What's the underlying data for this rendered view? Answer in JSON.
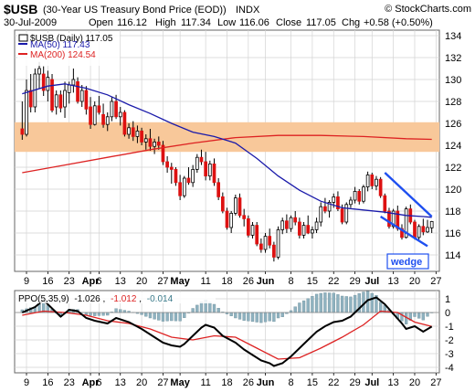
{
  "header": {
    "symbol": "$USB",
    "description": "(30-Year US Treasury Bond Price (EOD))",
    "exchange": "INDX",
    "watermark": "© StockCharts.com",
    "date": "30-Jul-2009",
    "open_label": "Open",
    "open": "116.12",
    "high_label": "High",
    "high": "117.34",
    "low_label": "Low",
    "low": "116.06",
    "close_label": "Close",
    "close": "117.05",
    "chg_label": "Chg",
    "chg": "+0.58 (+0.50%)"
  },
  "legend": {
    "price": "$USB (Daily) 117.05",
    "ma50": "MA(50) 117.43",
    "ma200": "MA(200) 124.54"
  },
  "ppo_legend": {
    "label": "PPO(5,35,9)",
    "ppo": "-1.026",
    "signal": "-1.012",
    "hist": "-0.014"
  },
  "annotation": {
    "wedge": "wedge"
  },
  "colors": {
    "up": "#ffffff",
    "down": "#dd1111",
    "ma50": "#1a1aaa",
    "ma200": "#dd2222",
    "band": "#f8c89a",
    "ppo": "#000000",
    "signal": "#dd2222",
    "hist": "#8fb2c0",
    "wedge_line": "#1e4ff0",
    "grid": "#d3d3d3"
  },
  "chart_data": [
    {
      "type": "candlestick",
      "title": "$USB (Daily)",
      "ylim": [
        112.5,
        134.5
      ],
      "y_ticks": [
        114,
        116,
        118,
        120,
        122,
        124,
        126,
        128,
        130,
        132,
        134
      ],
      "x_ticks": [
        {
          "i": 1,
          "label": "9"
        },
        {
          "i": 6,
          "label": "16"
        },
        {
          "i": 11,
          "label": "23"
        },
        {
          "i": 16,
          "label": "Apr"
        },
        {
          "i": 18,
          "label": "6"
        },
        {
          "i": 23,
          "label": "13"
        },
        {
          "i": 28,
          "label": "20"
        },
        {
          "i": 33,
          "label": "27"
        },
        {
          "i": 37,
          "label": "May"
        },
        {
          "i": 43,
          "label": "11"
        },
        {
          "i": 48,
          "label": "18"
        },
        {
          "i": 53,
          "label": "26"
        },
        {
          "i": 57,
          "label": "Jun"
        },
        {
          "i": 63,
          "label": "8"
        },
        {
          "i": 68,
          "label": "15"
        },
        {
          "i": 73,
          "label": "22"
        },
        {
          "i": 78,
          "label": "29"
        },
        {
          "i": 82,
          "label": "Jul"
        },
        {
          "i": 87,
          "label": "13"
        },
        {
          "i": 92,
          "label": "20"
        },
        {
          "i": 97,
          "label": "27"
        }
      ],
      "ohlc": [
        [
          125.5,
          128.0,
          124.5,
          125.0
        ],
        [
          125.0,
          130.0,
          124.8,
          129.0
        ],
        [
          129.0,
          130.5,
          127.0,
          127.5
        ],
        [
          127.5,
          131.0,
          127.0,
          130.5
        ],
        [
          130.5,
          131.6,
          129.2,
          131.0
        ],
        [
          130.5,
          131.2,
          128.5,
          129.0
        ],
        [
          129.0,
          130.8,
          128.0,
          130.2
        ],
        [
          130.0,
          130.5,
          127.0,
          127.2
        ],
        [
          127.5,
          129.0,
          126.8,
          128.6
        ],
        [
          128.6,
          129.0,
          127.0,
          127.4
        ],
        [
          127.5,
          129.8,
          126.5,
          129.0
        ],
        [
          128.8,
          129.8,
          127.8,
          129.5
        ],
        [
          129.5,
          131.0,
          128.8,
          130.0
        ],
        [
          129.8,
          130.2,
          127.8,
          128.0
        ],
        [
          128.0,
          129.5,
          127.5,
          129.0
        ],
        [
          129.0,
          129.4,
          126.8,
          127.3
        ],
        [
          127.5,
          128.4,
          125.5,
          125.9
        ],
        [
          125.9,
          128.0,
          125.8,
          127.6
        ],
        [
          127.6,
          128.5,
          126.8,
          127.0
        ],
        [
          126.8,
          127.8,
          125.6,
          125.9
        ],
        [
          125.9,
          127.0,
          125.3,
          126.6
        ],
        [
          126.6,
          128.4,
          126.2,
          128.0
        ],
        [
          128.0,
          128.6,
          126.4,
          126.6
        ],
        [
          126.6,
          127.5,
          125.8,
          127.0
        ],
        [
          127.0,
          127.2,
          124.8,
          125.0
        ],
        [
          125.0,
          126.0,
          124.6,
          125.6
        ],
        [
          125.6,
          126.2,
          124.4,
          124.8
        ],
        [
          124.8,
          125.8,
          124.2,
          125.3
        ],
        [
          125.3,
          125.6,
          124.0,
          124.3
        ],
        [
          124.3,
          125.0,
          123.6,
          124.6
        ],
        [
          124.6,
          125.5,
          123.5,
          123.9
        ],
        [
          123.9,
          124.6,
          123.2,
          124.3
        ],
        [
          124.3,
          124.8,
          123.6,
          124.0
        ],
        [
          124.0,
          124.4,
          122.2,
          122.5
        ],
        [
          122.5,
          123.0,
          121.5,
          122.0
        ],
        [
          122.0,
          122.4,
          120.5,
          121.8
        ],
        [
          121.8,
          122.0,
          120.3,
          120.6
        ],
        [
          120.6,
          121.3,
          119.0,
          119.4
        ],
        [
          119.4,
          121.2,
          119.2,
          121.0
        ],
        [
          121.0,
          122.0,
          120.4,
          120.6
        ],
        [
          120.6,
          122.2,
          120.2,
          121.8
        ],
        [
          121.8,
          123.2,
          121.5,
          122.9
        ],
        [
          122.9,
          123.6,
          122.2,
          122.5
        ],
        [
          122.5,
          123.4,
          120.8,
          121.2
        ],
        [
          121.2,
          122.6,
          120.8,
          122.3
        ],
        [
          122.3,
          122.8,
          120.3,
          120.6
        ],
        [
          120.6,
          121.0,
          119.0,
          119.3
        ],
        [
          119.3,
          119.7,
          117.8,
          118.0
        ],
        [
          118.0,
          118.3,
          116.3,
          116.5
        ],
        [
          116.5,
          118.0,
          116.0,
          117.8
        ],
        [
          117.8,
          119.5,
          117.6,
          119.2
        ],
        [
          119.2,
          119.6,
          117.4,
          117.6
        ],
        [
          117.6,
          118.2,
          116.6,
          117.3
        ],
        [
          117.3,
          117.6,
          115.6,
          115.8
        ],
        [
          115.8,
          117.0,
          115.5,
          116.7
        ],
        [
          116.7,
          117.0,
          114.8,
          115.0
        ],
        [
          115.0,
          115.5,
          114.2,
          114.5
        ],
        [
          114.5,
          116.0,
          114.2,
          115.7
        ],
        [
          115.7,
          116.4,
          114.6,
          114.9
        ],
        [
          114.9,
          115.2,
          113.4,
          113.8
        ],
        [
          113.8,
          116.6,
          113.6,
          116.3
        ],
        [
          116.3,
          117.4,
          115.9,
          117.1
        ],
        [
          117.1,
          117.7,
          116.0,
          116.4
        ],
        [
          116.4,
          117.6,
          116.1,
          117.4
        ],
        [
          117.4,
          118.0,
          116.7,
          117.0
        ],
        [
          117.0,
          117.4,
          115.5,
          115.8
        ],
        [
          115.8,
          117.0,
          115.5,
          116.7
        ],
        [
          116.7,
          117.6,
          115.9,
          116.0
        ],
        [
          116.0,
          116.6,
          115.5,
          116.3
        ],
        [
          116.3,
          117.4,
          116.0,
          117.0
        ],
        [
          117.0,
          118.8,
          116.6,
          118.4
        ],
        [
          118.4,
          119.2,
          117.8,
          118.0
        ],
        [
          118.0,
          119.0,
          117.4,
          118.8
        ],
        [
          118.8,
          119.6,
          118.3,
          119.3
        ],
        [
          119.3,
          119.8,
          118.0,
          118.2
        ],
        [
          118.2,
          118.6,
          116.8,
          117.0
        ],
        [
          117.0,
          118.8,
          116.8,
          118.6
        ],
        [
          118.6,
          119.3,
          118.3,
          119.0
        ],
        [
          119.0,
          120.2,
          118.7,
          119.8
        ],
        [
          119.8,
          120.0,
          118.6,
          118.9
        ],
        [
          118.9,
          120.4,
          118.7,
          120.2
        ],
        [
          120.2,
          121.6,
          119.8,
          121.3
        ],
        [
          121.3,
          121.5,
          120.0,
          120.3
        ],
        [
          120.3,
          121.2,
          119.9,
          120.9
        ],
        [
          120.9,
          121.1,
          119.2,
          119.4
        ],
        [
          119.4,
          119.6,
          117.8,
          118.0
        ],
        [
          118.0,
          118.3,
          116.4,
          116.6
        ],
        [
          116.6,
          118.2,
          116.4,
          118.0
        ],
        [
          118.0,
          118.5,
          116.2,
          116.4
        ],
        [
          116.4,
          116.8,
          115.4,
          115.6
        ],
        [
          115.6,
          118.4,
          115.5,
          118.2
        ],
        [
          118.2,
          118.6,
          116.8,
          117.0
        ],
        [
          117.0,
          117.2,
          115.4,
          115.6
        ],
        [
          115.6,
          116.8,
          115.4,
          116.6
        ],
        [
          116.6,
          117.3,
          115.8,
          116.1
        ],
        [
          116.1,
          117.2,
          116.0,
          116.5
        ],
        [
          116.47,
          117.1,
          116.0,
          117.05
        ]
      ],
      "ma50": [
        [
          0,
          128.7
        ],
        [
          6,
          129.4
        ],
        [
          10,
          129.6
        ],
        [
          15,
          129.2
        ],
        [
          20,
          128.6
        ],
        [
          25,
          127.7
        ],
        [
          30,
          126.9
        ],
        [
          35,
          126.0
        ],
        [
          40,
          125.2
        ],
        [
          45,
          124.8
        ],
        [
          50,
          124.2
        ],
        [
          55,
          122.8
        ],
        [
          60,
          121.2
        ],
        [
          65,
          119.9
        ],
        [
          70,
          118.9
        ],
        [
          75,
          118.3
        ],
        [
          80,
          118.1
        ],
        [
          85,
          117.9
        ],
        [
          90,
          117.6
        ],
        [
          94,
          117.5
        ],
        [
          96,
          117.43
        ]
      ],
      "ma200": [
        [
          0,
          121.5
        ],
        [
          10,
          122.2
        ],
        [
          20,
          122.9
        ],
        [
          30,
          123.6
        ],
        [
          40,
          124.2
        ],
        [
          50,
          124.7
        ],
        [
          60,
          124.9
        ],
        [
          70,
          124.9
        ],
        [
          80,
          124.8
        ],
        [
          90,
          124.6
        ],
        [
          96,
          124.54
        ]
      ],
      "resistance_band": [
        123.4,
        126.1
      ],
      "wedge_upper": [
        [
          85,
          121.5
        ],
        [
          96,
          117.5
        ]
      ],
      "wedge_lower": [
        [
          84,
          117.5
        ],
        [
          95,
          114.8
        ]
      ]
    },
    {
      "type": "line",
      "title": "PPO(5,35,9)",
      "ylim": [
        -4.4,
        1.6
      ],
      "y_ticks": [
        1,
        0,
        -1,
        -2,
        -3,
        -4
      ],
      "ppo": [
        [
          0,
          0.0
        ],
        [
          3,
          0.4
        ],
        [
          5,
          0.9
        ],
        [
          7,
          0.3
        ],
        [
          9,
          -0.3
        ],
        [
          11,
          0.2
        ],
        [
          13,
          0.1
        ],
        [
          15,
          -0.4
        ],
        [
          17,
          -0.6
        ],
        [
          20,
          -0.8
        ],
        [
          22,
          -0.4
        ],
        [
          25,
          -0.7
        ],
        [
          28,
          -1.2
        ],
        [
          31,
          -1.8
        ],
        [
          33,
          -2.2
        ],
        [
          35,
          -2.4
        ],
        [
          37,
          -2.5
        ],
        [
          38,
          -2.3
        ],
        [
          40,
          -1.7
        ],
        [
          42,
          -1.1
        ],
        [
          43,
          -0.9
        ],
        [
          45,
          -1.1
        ],
        [
          47,
          -1.7
        ],
        [
          50,
          -2.2
        ],
        [
          52,
          -2.7
        ],
        [
          54,
          -3.1
        ],
        [
          56,
          -3.5
        ],
        [
          58,
          -3.7
        ],
        [
          59,
          -3.9
        ],
        [
          61,
          -3.7
        ],
        [
          63,
          -3.2
        ],
        [
          65,
          -2.6
        ],
        [
          67,
          -2.0
        ],
        [
          69,
          -1.4
        ],
        [
          71,
          -1.0
        ],
        [
          73,
          -0.7
        ],
        [
          75,
          -0.6
        ],
        [
          77,
          -0.3
        ],
        [
          79,
          0.3
        ],
        [
          81,
          0.9
        ],
        [
          83,
          1.1
        ],
        [
          85,
          0.6
        ],
        [
          87,
          -0.1
        ],
        [
          89,
          -0.8
        ],
        [
          90,
          -1.2
        ],
        [
          92,
          -1.0
        ],
        [
          94,
          -1.4
        ],
        [
          96,
          -1.026
        ]
      ],
      "signal": [
        [
          0,
          -0.2
        ],
        [
          5,
          0.1
        ],
        [
          10,
          0.0
        ],
        [
          15,
          -0.2
        ],
        [
          20,
          -0.6
        ],
        [
          25,
          -0.8
        ],
        [
          30,
          -1.2
        ],
        [
          35,
          -1.8
        ],
        [
          40,
          -2.0
        ],
        [
          45,
          -1.7
        ],
        [
          50,
          -1.8
        ],
        [
          55,
          -2.6
        ],
        [
          60,
          -3.4
        ],
        [
          65,
          -3.3
        ],
        [
          70,
          -2.6
        ],
        [
          75,
          -1.8
        ],
        [
          80,
          -0.9
        ],
        [
          84,
          0.1
        ],
        [
          88,
          0.0
        ],
        [
          92,
          -0.7
        ],
        [
          96,
          -1.012
        ]
      ]
    }
  ]
}
